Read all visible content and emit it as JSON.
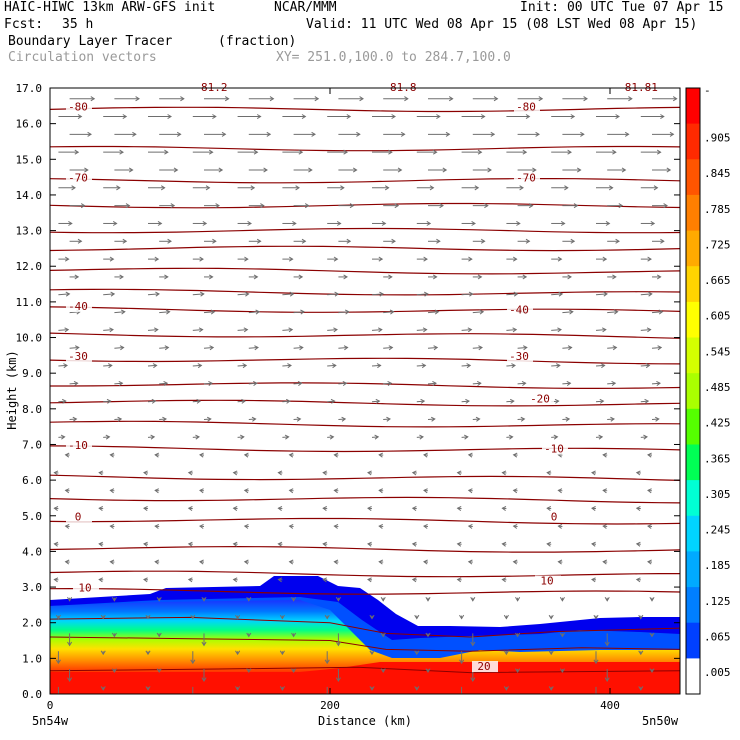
{
  "header": {
    "model": "HAIC-HIWC 13km ARW-GFS init",
    "org": "NCAR/MMM",
    "init": "Init: 00 UTC Tue 07 Apr 15",
    "fcst_label": "Fcst:",
    "fcst_value": "35 h",
    "valid": "Valid: 11 UTC Wed 08 Apr 15 (08 LST Wed 08 Apr 15)",
    "field": "Boundary Layer Tracer",
    "field_units": "(fraction)",
    "vectors": "Circulation vectors",
    "xy": "XY= 251.0,100.0 to 284.7,100.0"
  },
  "chart_data": {
    "type": "heatmap",
    "xlabel": "Distance (km)",
    "ylabel": "Height (km)",
    "xlim": [
      0,
      450
    ],
    "ylim": [
      0,
      17
    ],
    "xticks": [
      0,
      200,
      400
    ],
    "yticks": [
      "0.0",
      "1.0",
      "2.0",
      "3.0",
      "4.0",
      "5.0",
      "6.0",
      "7.0",
      "8.0",
      "9.0",
      "10.0",
      "11.0",
      "12.0",
      "13.0",
      "14.0",
      "15.0",
      "16.0",
      "17.0"
    ],
    "x_end_labels": {
      "left": "5n54w",
      "right": "5n50w"
    },
    "colorbar": {
      "labels": [
        "-",
        ".905",
        ".845",
        ".785",
        ".725",
        ".665",
        ".605",
        ".545",
        ".485",
        ".425",
        ".365",
        ".305",
        ".245",
        ".185",
        ".125",
        ".065",
        ".005"
      ],
      "colors": [
        "#ff0000",
        "#ff2a00",
        "#ff5500",
        "#ff7f00",
        "#ffaa00",
        "#ffd400",
        "#ffff00",
        "#d4ff00",
        "#aaff00",
        "#55ff00",
        "#00ff55",
        "#00ffd4",
        "#00d4ff",
        "#00aaff",
        "#007fff",
        "#0040ff",
        "#ffffff"
      ]
    },
    "contour_labels": [
      {
        "text": "-80",
        "x": 20,
        "y": 16.4
      },
      {
        "text": "-80",
        "x": 340,
        "y": 16.4
      },
      {
        "text": "-70",
        "x": 20,
        "y": 14.4
      },
      {
        "text": "-70",
        "x": 340,
        "y": 14.4
      },
      {
        "text": "-40",
        "x": 20,
        "y": 10.8
      },
      {
        "text": "-40",
        "x": 335,
        "y": 10.7
      },
      {
        "text": "-30",
        "x": 20,
        "y": 9.4
      },
      {
        "text": "-30",
        "x": 335,
        "y": 9.4
      },
      {
        "text": "-20",
        "x": 350,
        "y": 8.2
      },
      {
        "text": "-10",
        "x": 20,
        "y": 6.9
      },
      {
        "text": "-10",
        "x": 360,
        "y": 6.8
      },
      {
        "text": "0",
        "x": 20,
        "y": 4.9
      },
      {
        "text": "0",
        "x": 360,
        "y": 4.9
      },
      {
        "text": "10",
        "x": 25,
        "y": 2.9
      },
      {
        "text": "10",
        "x": 355,
        "y": 3.1
      },
      {
        "text": "20",
        "x": 310,
        "y": 0.7
      }
    ],
    "top_partial_labels": [
      "-81.2",
      "-81.8",
      "-81.81"
    ],
    "grid": false
  }
}
